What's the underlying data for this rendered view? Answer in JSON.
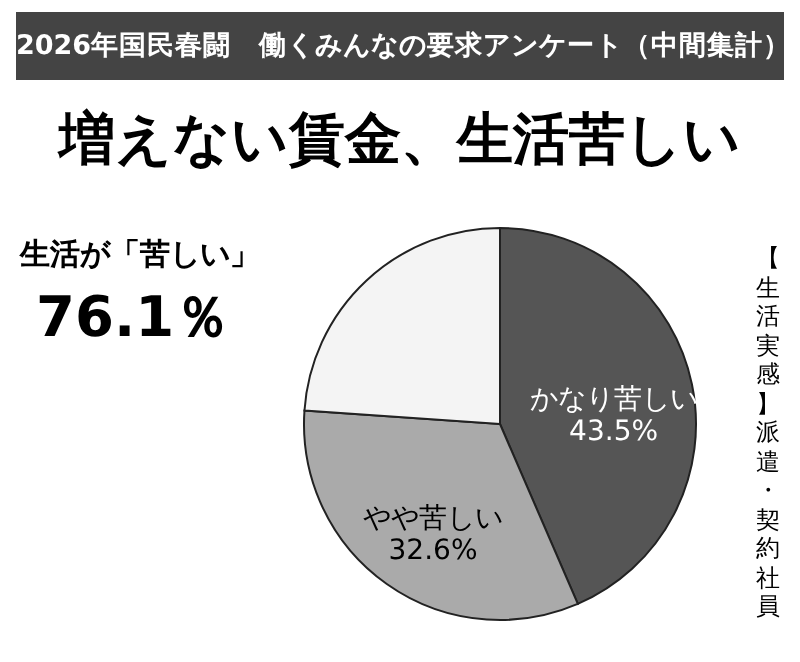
{
  "chart_data": {
    "type": "pie",
    "title": "2026年国民春闘　働くみんなの要求アンケート（中間集計）",
    "subtitle": "増えない賃金、生活苦しい",
    "annotations": [
      "生活が「苦しい」",
      "76.1％",
      "【生活実感】派遣・契約社員"
    ],
    "categories": [
      "かなり苦しい",
      "やや苦しい",
      null
    ],
    "values": [
      43.5,
      32.6,
      23.9
    ],
    "value_labels": [
      "43.5%",
      "32.6%",
      null
    ],
    "colors": [
      "#555555",
      "#aaaaaa",
      "#f4f4f4"
    ]
  }
}
